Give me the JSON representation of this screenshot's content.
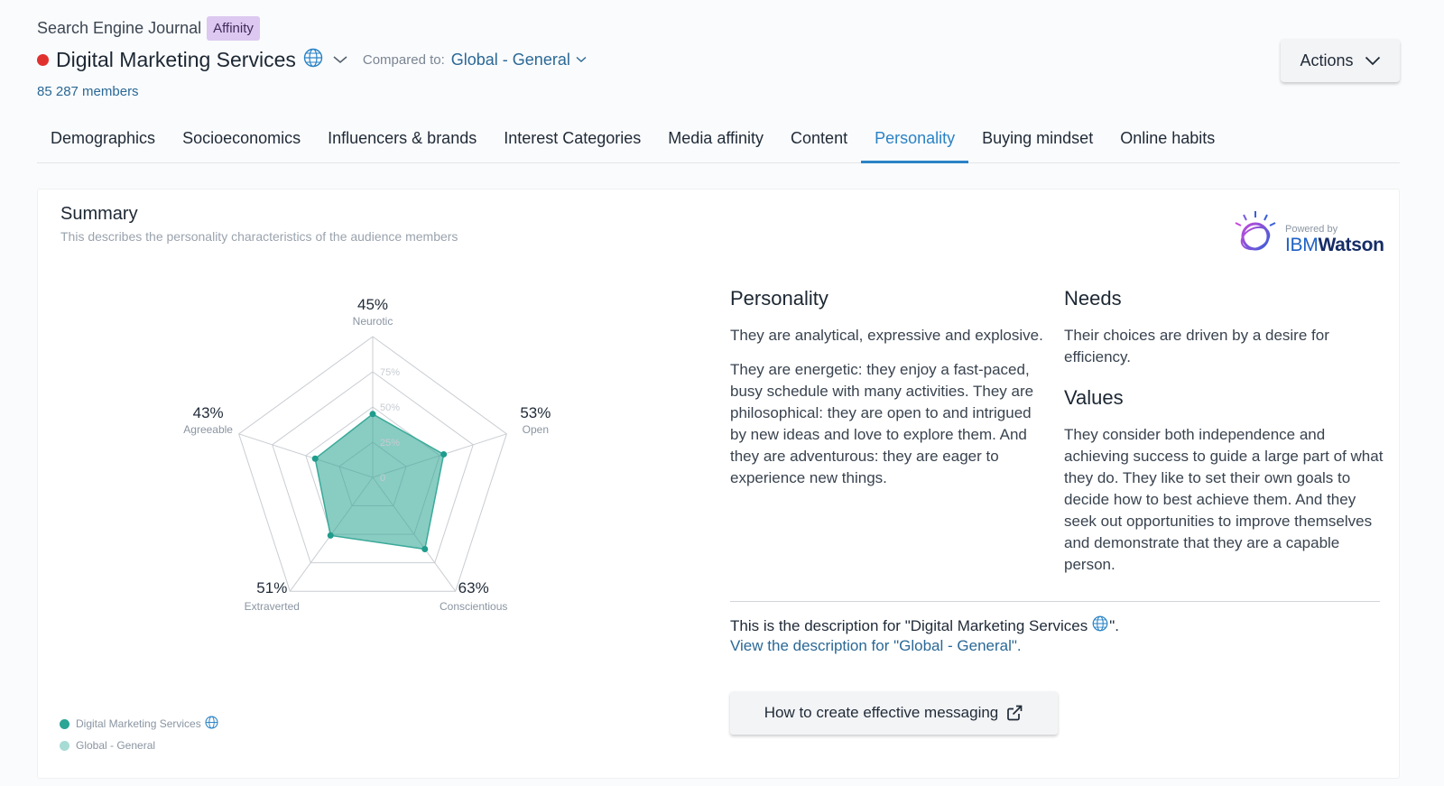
{
  "header": {
    "source_name": "Search Engine Journal",
    "badge": "Affinity",
    "audience_title": "Digital Marketing Services",
    "compared_label": "Compared to:",
    "compared_value": "Global - General",
    "members": "85 287 members",
    "actions_label": "Actions",
    "status_color": "#e0312f"
  },
  "tabs": [
    {
      "label": "Demographics",
      "active": false
    },
    {
      "label": "Socioeconomics",
      "active": false
    },
    {
      "label": "Influencers & brands",
      "active": false
    },
    {
      "label": "Interest Categories",
      "active": false
    },
    {
      "label": "Media affinity",
      "active": false
    },
    {
      "label": "Content",
      "active": false
    },
    {
      "label": "Personality",
      "active": true
    },
    {
      "label": "Buying mindset",
      "active": false
    },
    {
      "label": "Online habits",
      "active": false
    }
  ],
  "summary": {
    "title": "Summary",
    "subtitle": "This describes the personality characteristics of the audience members",
    "powered_by": "Powered by",
    "brand_ibm": "IBM",
    "brand_watson": "Watson"
  },
  "chart_data": {
    "type": "radar",
    "axes": [
      "Neurotic",
      "Open",
      "Conscientious",
      "Extraverted",
      "Agreeable"
    ],
    "axis_values_labels": [
      "45%",
      "53%",
      "63%",
      "51%",
      "43%"
    ],
    "rings": [
      "0",
      "25%",
      "50%",
      "75%"
    ],
    "range": [
      0,
      100
    ],
    "series": [
      {
        "name": "Digital Marketing Services",
        "values": [
          45,
          53,
          63,
          51,
          43
        ],
        "color": "#3aaa9a"
      }
    ],
    "legend": [
      {
        "name": "Digital Marketing Services",
        "color": "#2aa596"
      },
      {
        "name": "Global - General",
        "color": "#a7dcd5"
      }
    ]
  },
  "personality": {
    "heading": "Personality",
    "p1": "They are analytical, expressive and explosive.",
    "p2": "They are energetic: they enjoy a fast-paced, busy schedule with many activities. They are philosophical: they are open to and intrigued by new ideas and love to explore them. And they are adventurous: they are eager to experience new things."
  },
  "needs": {
    "heading": "Needs",
    "p1": "Their choices are driven by a desire for efficiency."
  },
  "values": {
    "heading": "Values",
    "p1": "They consider both independence and achieving success to guide a large part of what they do. They like to set their own goals to decide how to best achieve them. And they seek out opportunities to improve themselves and demonstrate that they are a capable person."
  },
  "description": {
    "prefix": "This is the description for \"Digital Marketing Services",
    "suffix": "\".",
    "view_link": "View the description for \"Global - General\"."
  },
  "messaging_button": "How to create effective messaging"
}
